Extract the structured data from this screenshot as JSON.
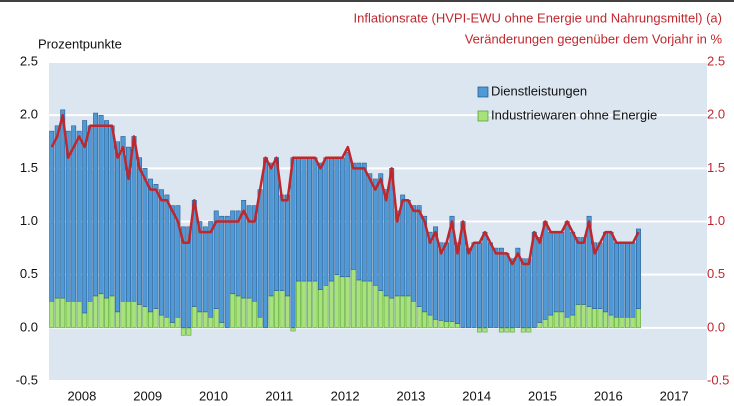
{
  "chart_data": {
    "type": "stacked_bar_line",
    "title": "Inflationsrate (HVPI-EWU ohne Energie und Nahrungsmittel) (a)",
    "y2_label": "Veränderungen gegenüber dem Vorjahr in %",
    "y_label": "Prozentpunkte",
    "year_labels": [
      "2008",
      "2009",
      "2010",
      "2011",
      "2012",
      "2013",
      "2014",
      "2015",
      "2016",
      "2017"
    ],
    "categories": [
      null,
      null,
      null,
      null,
      null,
      null,
      null,
      null,
      null,
      null,
      null,
      null,
      null,
      null,
      null,
      null,
      null,
      null,
      null,
      null,
      null,
      null,
      null,
      null,
      null,
      null,
      null,
      null,
      null,
      null,
      null,
      null,
      null,
      null,
      null,
      null,
      null,
      null,
      null,
      null,
      null,
      null,
      null,
      null,
      null,
      null,
      null,
      null,
      null,
      null,
      null,
      null,
      null,
      null,
      null,
      null,
      null,
      null,
      null,
      null,
      null,
      null,
      null,
      null,
      null,
      null,
      null,
      null,
      null,
      null,
      null,
      null,
      null,
      null,
      null,
      null,
      null,
      null,
      null,
      null,
      null,
      null,
      null,
      null,
      null,
      null,
      null,
      null,
      null,
      null,
      null,
      null,
      null,
      null,
      null,
      null,
      null,
      null,
      null,
      null,
      null,
      null,
      null,
      null,
      null,
      null,
      null,
      null
    ],
    "series": [
      {
        "name": "Industriewaren ohne Energie",
        "color": "#a8e27c",
        "stroke": "#4c9a2a",
        "values": [
          0.25,
          0.28,
          0.28,
          0.25,
          0.25,
          0.25,
          0.14,
          0.25,
          0.3,
          0.32,
          0.28,
          0.3,
          0.15,
          0.25,
          0.25,
          0.25,
          0.22,
          0.2,
          0.15,
          0.18,
          0.12,
          0.1,
          0.05,
          0.1,
          -0.07,
          -0.07,
          0.2,
          0.15,
          0.15,
          0.1,
          0.18,
          0.05,
          0,
          0.32,
          0.3,
          0.28,
          0.28,
          0.25,
          0.1,
          0,
          0.3,
          0.35,
          0.35,
          0.3,
          -0.03,
          0.44,
          0.44,
          0.44,
          0.44,
          0.36,
          0.4,
          0.44,
          0.5,
          0.48,
          0.48,
          0.55,
          0.45,
          0.44,
          0.44,
          0.4,
          0.35,
          0.3,
          0.28,
          0.3,
          0.3,
          0.3,
          0.25,
          0.2,
          0.15,
          0.12,
          0.08,
          0.07,
          0.06,
          0.06,
          0.04,
          0,
          0,
          0,
          -0.04,
          -0.04,
          0,
          0,
          -0.04,
          -0.04,
          -0.04,
          0,
          -0.04,
          -0.04,
          0,
          0.05,
          0.08,
          0.12,
          0.15,
          0.15,
          0.1,
          0.12,
          0.22,
          0.22,
          0.2,
          0.18,
          0.18,
          0.15,
          0.12,
          0.1,
          0.1,
          0.1,
          0.1,
          0.18
        ]
      },
      {
        "name": "Dienstleistungen",
        "color": "#4f9ad6",
        "stroke": "#1f4f86",
        "values": [
          1.6,
          1.62,
          1.77,
          1.6,
          1.65,
          1.6,
          1.81,
          1.65,
          1.72,
          1.68,
          1.67,
          1.6,
          1.6,
          1.55,
          1.45,
          1.55,
          1.38,
          1.3,
          1.25,
          1.17,
          1.18,
          1.15,
          1.1,
          1.05,
          0.95,
          0.95,
          1.0,
          0.85,
          0.8,
          0.9,
          0.92,
          1.0,
          1.05,
          0.78,
          0.8,
          0.92,
          0.87,
          0.9,
          1.2,
          1.6,
          1.25,
          1.25,
          0.9,
          0.95,
          1.6,
          1.16,
          1.16,
          1.16,
          1.16,
          1.19,
          1.2,
          1.16,
          1.1,
          1.12,
          1.17,
          1.0,
          1.1,
          1.11,
          1.01,
          1.0,
          1.1,
          1.0,
          1.22,
          0.8,
          0.95,
          0.9,
          0.9,
          0.95,
          0.9,
          0.78,
          0.87,
          0.73,
          0.74,
          0.99,
          0.76,
          1.0,
          0.75,
          0.8,
          0.8,
          0.9,
          0.8,
          0.75,
          0.75,
          0.7,
          0.65,
          0.75,
          0.65,
          0.65,
          0.9,
          0.8,
          0.92,
          0.78,
          0.75,
          0.75,
          0.9,
          0.78,
          0.63,
          0.63,
          0.85,
          0.62,
          0.62,
          0.75,
          0.78,
          0.7,
          0.7,
          0.7,
          0.7,
          0.75
        ]
      }
    ],
    "line": {
      "color": "#c0272d",
      "axis": "y2",
      "values": [
        1.7,
        1.8,
        2.0,
        1.6,
        1.7,
        1.8,
        1.7,
        1.9,
        1.9,
        1.9,
        1.9,
        1.9,
        1.6,
        1.7,
        1.4,
        1.8,
        1.5,
        1.4,
        1.3,
        1.3,
        1.2,
        1.2,
        1.1,
        1.0,
        0.8,
        0.8,
        1.2,
        0.9,
        0.9,
        0.9,
        1.0,
        1.0,
        1.0,
        1.0,
        1.0,
        1.1,
        1.0,
        1.0,
        1.3,
        1.6,
        1.5,
        1.6,
        1.2,
        1.2,
        1.6,
        1.6,
        1.6,
        1.6,
        1.6,
        1.5,
        1.6,
        1.6,
        1.6,
        1.6,
        1.7,
        1.5,
        1.5,
        1.5,
        1.4,
        1.3,
        1.4,
        1.2,
        1.5,
        1.0,
        1.2,
        1.2,
        1.1,
        1.1,
        1.0,
        0.8,
        0.9,
        0.7,
        0.8,
        1.0,
        0.7,
        1.0,
        0.7,
        0.8,
        0.8,
        0.9,
        0.8,
        0.7,
        0.7,
        0.7,
        0.6,
        0.7,
        0.6,
        0.6,
        0.9,
        0.8,
        1.0,
        0.9,
        0.9,
        0.9,
        1.0,
        0.9,
        0.8,
        0.8,
        1.0,
        0.7,
        0.8,
        0.9,
        0.9,
        0.8,
        0.8,
        0.8,
        0.8,
        0.9
      ]
    },
    "ylim": [
      -0.5,
      2.5
    ],
    "yticks": [
      {
        "value": -0.5,
        "label": "-0.5"
      },
      {
        "value": 0,
        "label": "0.0"
      },
      0.5,
      {
        "value": 1,
        "label": "1.0"
      },
      1.5,
      {
        "value": 2,
        "label": "2.0"
      },
      2.5
    ],
    "y2lim": [
      -0.5,
      2.5
    ],
    "y2ticks": [
      {
        "value": -0.5,
        "label": "-0.5"
      },
      {
        "value": 0,
        "label": "0.0"
      },
      0.5,
      {
        "value": 1,
        "label": "1.0"
      },
      1.5,
      {
        "value": 2,
        "label": "2.0"
      },
      2.5
    ],
    "grid": true,
    "legend": "top-right"
  }
}
